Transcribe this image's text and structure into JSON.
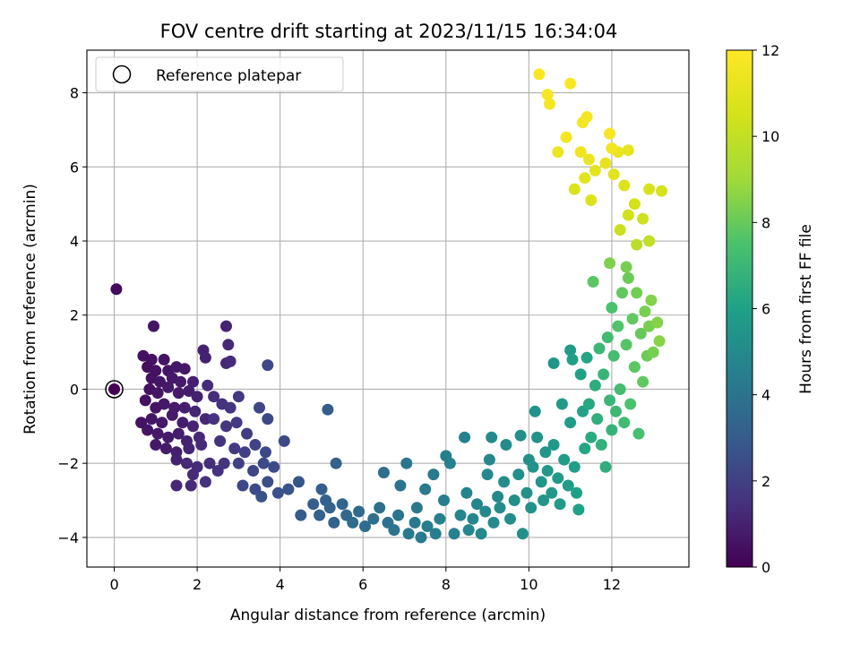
{
  "chart_data": {
    "type": "scatter",
    "title": "FOV centre drift starting at 2023/11/15 16:34:04",
    "xlabel": "Angular distance from reference (arcmin)",
    "ylabel": "Rotation from reference (arcmin)",
    "xlim": [
      -0.66,
      13.86
    ],
    "ylim": [
      -4.8,
      9.15
    ],
    "xticks": [
      0,
      2,
      4,
      6,
      8,
      10,
      12
    ],
    "yticks": [
      -4,
      -2,
      0,
      2,
      4,
      6,
      8
    ],
    "xtick_labels": [
      "0",
      "2",
      "4",
      "6",
      "8",
      "10",
      "12"
    ],
    "ytick_labels": [
      "−4",
      "−2",
      "0",
      "2",
      "4",
      "6",
      "8"
    ],
    "grid": true,
    "legend": {
      "placement": "top-left",
      "entries": [
        {
          "label": "Reference platepar",
          "marker": "hollow-circle"
        }
      ]
    },
    "reference_point": {
      "x": 0,
      "y": 0
    },
    "colorbar": {
      "label": "Hours from first FF file",
      "colormap": "viridis",
      "range": [
        0,
        12
      ],
      "ticks": [
        0,
        2,
        4,
        6,
        8,
        10,
        12
      ],
      "tick_labels": [
        "0",
        "2",
        "4",
        "6",
        "8",
        "10",
        "12"
      ]
    },
    "points": [
      [
        0.05,
        2.7,
        0.3
      ],
      [
        0.95,
        1.7,
        0.6
      ],
      [
        0.7,
        0.9,
        0.5
      ],
      [
        0.9,
        0.8,
        0.5
      ],
      [
        1.2,
        0.8,
        0.6
      ],
      [
        0.8,
        0.6,
        0.4
      ],
      [
        1.0,
        0.5,
        0.5
      ],
      [
        1.3,
        0.5,
        0.6
      ],
      [
        1.5,
        0.6,
        0.7
      ],
      [
        1.7,
        0.55,
        0.7
      ],
      [
        0.9,
        0.3,
        0.5
      ],
      [
        1.1,
        0.2,
        0.6
      ],
      [
        1.4,
        0.3,
        0.7
      ],
      [
        1.6,
        0.2,
        0.8
      ],
      [
        1.9,
        0.2,
        0.9
      ],
      [
        0.85,
        0.0,
        0.5
      ],
      [
        1.05,
        -0.1,
        0.6
      ],
      [
        1.3,
        0.05,
        0.7
      ],
      [
        1.55,
        -0.1,
        0.8
      ],
      [
        1.8,
        -0.05,
        0.9
      ],
      [
        2.0,
        -0.2,
        1.0
      ],
      [
        0.75,
        -0.3,
        0.5
      ],
      [
        1.0,
        -0.5,
        0.6
      ],
      [
        1.2,
        -0.4,
        0.7
      ],
      [
        1.45,
        -0.5,
        0.8
      ],
      [
        1.7,
        -0.5,
        0.9
      ],
      [
        1.95,
        -0.6,
        1.1
      ],
      [
        2.2,
        -0.8,
        1.2
      ],
      [
        0.65,
        -0.9,
        0.5
      ],
      [
        0.9,
        -0.8,
        0.6
      ],
      [
        1.15,
        -0.9,
        0.7
      ],
      [
        1.4,
        -0.7,
        0.8
      ],
      [
        1.65,
        -0.9,
        0.9
      ],
      [
        1.9,
        -1.0,
        1.1
      ],
      [
        0.8,
        -1.1,
        0.6
      ],
      [
        1.05,
        -1.2,
        0.7
      ],
      [
        1.3,
        -1.3,
        0.8
      ],
      [
        1.55,
        -1.2,
        0.9
      ],
      [
        1.75,
        -1.4,
        1.0
      ],
      [
        2.05,
        -1.3,
        1.2
      ],
      [
        1.0,
        -1.5,
        0.7
      ],
      [
        1.25,
        -1.6,
        0.8
      ],
      [
        1.5,
        -1.7,
        0.9
      ],
      [
        1.8,
        -1.6,
        1.1
      ],
      [
        2.1,
        -1.5,
        1.3
      ],
      [
        1.5,
        -1.9,
        1.0
      ],
      [
        1.75,
        -2.0,
        1.2
      ],
      [
        2.0,
        -2.1,
        1.3
      ],
      [
        2.3,
        -2.0,
        1.4
      ],
      [
        1.9,
        -2.3,
        1.3
      ],
      [
        2.5,
        -2.2,
        1.5
      ],
      [
        1.5,
        -2.6,
        1.2
      ],
      [
        1.85,
        -2.6,
        1.3
      ],
      [
        2.2,
        -2.5,
        1.5
      ],
      [
        2.65,
        -2.0,
        1.6
      ],
      [
        2.15,
        1.05,
        1.0
      ],
      [
        2.2,
        0.85,
        1.0
      ],
      [
        2.7,
        1.7,
        1.1
      ],
      [
        2.75,
        1.2,
        1.2
      ],
      [
        2.7,
        0.7,
        1.2
      ],
      [
        2.8,
        0.75,
        1.3
      ],
      [
        2.25,
        0.1,
        1.3
      ],
      [
        2.4,
        -0.2,
        1.4
      ],
      [
        2.6,
        -0.4,
        1.5
      ],
      [
        2.8,
        -0.5,
        1.6
      ],
      [
        3.0,
        -0.2,
        1.8
      ],
      [
        2.4,
        -0.8,
        1.5
      ],
      [
        2.7,
        -1.0,
        1.6
      ],
      [
        2.95,
        -0.9,
        1.8
      ],
      [
        3.2,
        -1.2,
        1.9
      ],
      [
        2.55,
        -1.4,
        1.6
      ],
      [
        2.9,
        -1.6,
        1.8
      ],
      [
        3.15,
        -1.7,
        2.0
      ],
      [
        3.4,
        -1.5,
        2.1
      ],
      [
        3.65,
        -1.7,
        2.3
      ],
      [
        3.0,
        -2.0,
        2.0
      ],
      [
        3.35,
        -2.2,
        2.2
      ],
      [
        3.6,
        -2.0,
        2.3
      ],
      [
        3.85,
        -2.1,
        2.4
      ],
      [
        4.1,
        -1.4,
        2.4
      ],
      [
        3.5,
        -0.5,
        2.2
      ],
      [
        3.7,
        -0.8,
        2.3
      ],
      [
        3.7,
        0.65,
        2.3
      ],
      [
        3.1,
        -2.6,
        2.3
      ],
      [
        3.4,
        -2.7,
        2.4
      ],
      [
        3.7,
        -2.5,
        2.5
      ],
      [
        3.95,
        -2.8,
        2.6
      ],
      [
        4.2,
        -2.7,
        2.7
      ],
      [
        4.45,
        -2.5,
        2.8
      ],
      [
        3.55,
        -2.9,
        2.6
      ],
      [
        4.5,
        -3.4,
        3.0
      ],
      [
        4.8,
        -3.1,
        3.1
      ],
      [
        5.0,
        -2.7,
        3.1
      ],
      [
        5.1,
        -3.0,
        3.2
      ],
      [
        5.2,
        -3.2,
        3.3
      ],
      [
        5.35,
        -2.0,
        3.2
      ],
      [
        5.15,
        -0.55,
        3.1
      ],
      [
        4.95,
        -3.4,
        3.2
      ],
      [
        5.3,
        -3.6,
        3.3
      ],
      [
        5.5,
        -3.1,
        3.4
      ],
      [
        5.6,
        -3.4,
        3.5
      ],
      [
        5.75,
        -3.6,
        3.6
      ],
      [
        5.9,
        -3.3,
        3.6
      ],
      [
        6.05,
        -3.7,
        3.7
      ],
      [
        6.25,
        -3.5,
        3.8
      ],
      [
        6.4,
        -3.2,
        3.8
      ],
      [
        6.5,
        -2.25,
        3.8
      ],
      [
        6.6,
        -3.6,
        3.9
      ],
      [
        6.75,
        -3.8,
        4.0
      ],
      [
        6.85,
        -3.4,
        4.0
      ],
      [
        6.9,
        -2.6,
        4.0
      ],
      [
        7.05,
        -2.0,
        4.1
      ],
      [
        7.1,
        -3.9,
        4.2
      ],
      [
        7.25,
        -3.6,
        4.2
      ],
      [
        7.3,
        -3.2,
        4.2
      ],
      [
        7.4,
        -4.0,
        4.3
      ],
      [
        7.5,
        -2.7,
        4.3
      ],
      [
        7.55,
        -3.7,
        4.4
      ],
      [
        7.7,
        -2.3,
        4.3
      ],
      [
        7.75,
        -3.9,
        4.4
      ],
      [
        7.85,
        -3.5,
        4.5
      ],
      [
        7.95,
        -3.0,
        4.5
      ],
      [
        8.0,
        -1.8,
        4.5
      ],
      [
        8.1,
        -2.0,
        4.6
      ],
      [
        8.2,
        -3.9,
        4.6
      ],
      [
        8.35,
        -3.4,
        4.7
      ],
      [
        8.45,
        -1.3,
        4.6
      ],
      [
        8.5,
        -2.8,
        4.7
      ],
      [
        8.55,
        -3.8,
        4.8
      ],
      [
        8.65,
        -3.5,
        4.8
      ],
      [
        8.75,
        -3.1,
        4.8
      ],
      [
        8.85,
        -3.9,
        4.9
      ],
      [
        8.95,
        -3.3,
        4.9
      ],
      [
        9.0,
        -2.3,
        4.9
      ],
      [
        9.05,
        -1.9,
        4.9
      ],
      [
        9.1,
        -1.3,
        5.0
      ],
      [
        9.15,
        -3.6,
        5.0
      ],
      [
        9.25,
        -2.9,
        5.0
      ],
      [
        9.3,
        -3.2,
        5.1
      ],
      [
        9.4,
        -2.5,
        5.1
      ],
      [
        9.45,
        -1.5,
        5.0
      ],
      [
        9.55,
        -3.5,
        5.1
      ],
      [
        9.65,
        -3.0,
        5.2
      ],
      [
        9.75,
        -2.3,
        5.2
      ],
      [
        9.8,
        -1.25,
        5.2
      ],
      [
        9.85,
        -3.9,
        5.2
      ],
      [
        9.95,
        -2.8,
        5.3
      ],
      [
        10.0,
        -1.9,
        5.3
      ],
      [
        10.05,
        -3.2,
        5.3
      ],
      [
        10.1,
        -2.1,
        5.4
      ],
      [
        10.15,
        -0.6,
        5.4
      ],
      [
        10.2,
        -1.3,
        5.4
      ],
      [
        10.3,
        -2.5,
        5.5
      ],
      [
        10.35,
        -3.0,
        5.5
      ],
      [
        10.4,
        -1.7,
        5.5
      ],
      [
        10.45,
        -2.2,
        5.6
      ],
      [
        10.55,
        -2.8,
        5.6
      ],
      [
        10.6,
        0.7,
        5.5
      ],
      [
        10.6,
        -1.5,
        5.6
      ],
      [
        10.7,
        -2.4,
        5.7
      ],
      [
        10.75,
        -3.1,
        5.7
      ],
      [
        10.8,
        -0.4,
        5.7
      ],
      [
        10.85,
        -1.9,
        5.8
      ],
      [
        10.95,
        -2.6,
        5.8
      ],
      [
        11.0,
        1.05,
        5.8
      ],
      [
        11.0,
        -0.9,
        5.8
      ],
      [
        11.05,
        0.8,
        5.9
      ],
      [
        11.1,
        -2.1,
        5.9
      ],
      [
        11.15,
        -2.8,
        6.0
      ],
      [
        11.2,
        -3.25,
        6.0
      ],
      [
        11.25,
        0.4,
        6.0
      ],
      [
        11.3,
        -0.6,
        6.1
      ],
      [
        11.35,
        -1.6,
        6.2
      ],
      [
        11.4,
        0.85,
        6.2
      ],
      [
        11.45,
        -0.4,
        6.3
      ],
      [
        11.5,
        -1.3,
        6.4
      ],
      [
        11.55,
        2.9,
        7.8
      ],
      [
        11.6,
        0.1,
        6.5
      ],
      [
        11.65,
        -0.8,
        6.6
      ],
      [
        11.7,
        1.1,
        7.0
      ],
      [
        11.75,
        -1.5,
        6.7
      ],
      [
        11.8,
        0.4,
        6.9
      ],
      [
        11.85,
        -2.1,
        6.6
      ],
      [
        11.9,
        1.4,
        7.2
      ],
      [
        11.95,
        -0.3,
        7.0
      ],
      [
        12.0,
        2.2,
        7.5
      ],
      [
        12.0,
        -1.1,
        6.8
      ],
      [
        12.05,
        0.9,
        7.3
      ],
      [
        12.1,
        -0.6,
        7.1
      ],
      [
        12.15,
        1.7,
        7.6
      ],
      [
        12.2,
        0.0,
        7.3
      ],
      [
        12.25,
        2.6,
        7.9
      ],
      [
        12.3,
        -0.9,
        7.2
      ],
      [
        12.35,
        1.2,
        7.7
      ],
      [
        12.4,
        3.0,
        8.1
      ],
      [
        12.45,
        -0.4,
        7.5
      ],
      [
        12.5,
        1.9,
        7.9
      ],
      [
        12.55,
        0.6,
        7.8
      ],
      [
        12.6,
        2.6,
        8.2
      ],
      [
        12.65,
        -1.2,
        7.4
      ],
      [
        12.7,
        1.5,
        8.0
      ],
      [
        12.75,
        0.2,
        7.9
      ],
      [
        12.8,
        2.1,
        8.3
      ],
      [
        12.85,
        0.9,
        8.1
      ],
      [
        12.9,
        1.7,
        8.3
      ],
      [
        12.95,
        2.4,
        8.5
      ],
      [
        13.0,
        1.0,
        8.3
      ],
      [
        13.1,
        1.8,
        8.5
      ],
      [
        13.15,
        1.3,
        8.6
      ],
      [
        12.35,
        3.3,
        8.3
      ],
      [
        11.95,
        3.4,
        8.4
      ],
      [
        12.6,
        3.9,
        9.8
      ],
      [
        12.2,
        4.3,
        10.2
      ],
      [
        12.4,
        4.7,
        10.4
      ],
      [
        12.55,
        5.0,
        10.5
      ],
      [
        12.75,
        4.6,
        10.3
      ],
      [
        12.9,
        4.0,
        10.0
      ],
      [
        12.9,
        5.4,
        10.7
      ],
      [
        13.2,
        5.35,
        10.6
      ],
      [
        12.3,
        5.5,
        10.8
      ],
      [
        12.05,
        5.8,
        11.0
      ],
      [
        11.85,
        6.1,
        11.2
      ],
      [
        12.15,
        6.4,
        11.3
      ],
      [
        11.6,
        5.9,
        11.1
      ],
      [
        11.35,
        5.7,
        11.0
      ],
      [
        11.5,
        5.1,
        10.8
      ],
      [
        11.45,
        6.2,
        11.4
      ],
      [
        11.95,
        6.9,
        11.8
      ],
      [
        12.4,
        6.45,
        11.2
      ],
      [
        11.1,
        5.4,
        10.7
      ],
      [
        11.25,
        6.4,
        11.5
      ],
      [
        10.9,
        6.8,
        11.6
      ],
      [
        10.7,
        6.4,
        11.4
      ],
      [
        11.3,
        7.2,
        11.6
      ],
      [
        11.4,
        7.35,
        11.7
      ],
      [
        10.45,
        7.95,
        11.8
      ],
      [
        10.5,
        7.7,
        11.7
      ],
      [
        10.25,
        8.5,
        11.9
      ],
      [
        11.0,
        8.25,
        11.9
      ],
      [
        12.0,
        6.5,
        11.6
      ]
    ]
  }
}
